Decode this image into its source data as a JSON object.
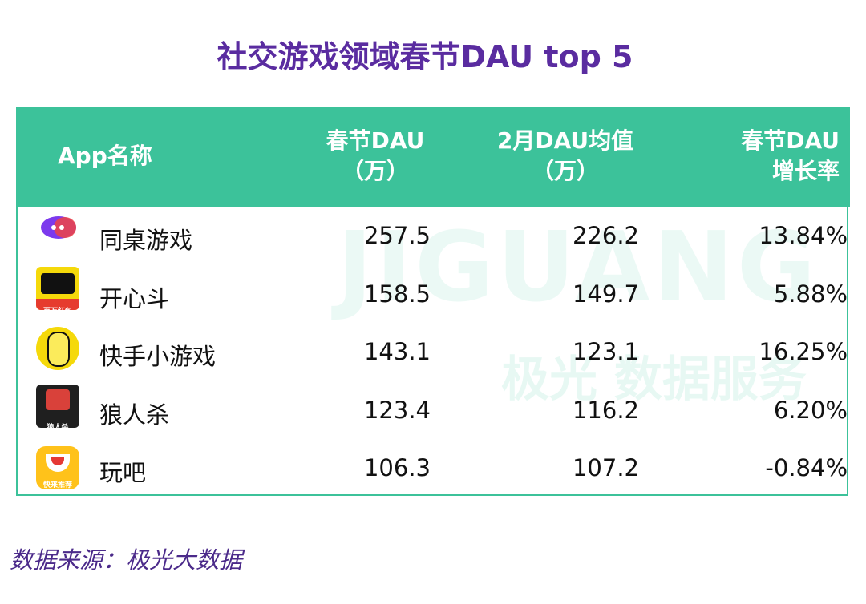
{
  "header": {
    "title": "社交游戏领域春节DAU top 5"
  },
  "table": {
    "columns": [
      [
        "App名称"
      ],
      [
        "春节DAU",
        "（万）"
      ],
      [
        "2月DAU均值",
        "（万）"
      ],
      [
        "春节DAU",
        "增长率"
      ]
    ],
    "rows": [
      {
        "icon_label": null,
        "cells": [
          "同桌游戏",
          "257.5",
          "226.2",
          "13.84%"
        ]
      },
      {
        "icon_label": "百万红包",
        "cells": [
          "开心斗",
          "158.5",
          "149.7",
          "5.88%"
        ]
      },
      {
        "icon_label": null,
        "cells": [
          "快手小游戏",
          "143.1",
          "123.1",
          "16.25%"
        ]
      },
      {
        "icon_label": "狼人杀",
        "cells": [
          "狼人杀",
          "123.4",
          "116.2",
          "6.20%"
        ]
      },
      {
        "icon_label": "快来推荐",
        "cells": [
          "玩吧",
          "106.3",
          "107.2",
          "-0.84%"
        ]
      }
    ]
  },
  "watermark": {
    "brand": "JIGUANG",
    "subtitle": "极光 数据服务"
  },
  "footer": {
    "source": "数据来源：极光大数据"
  }
}
